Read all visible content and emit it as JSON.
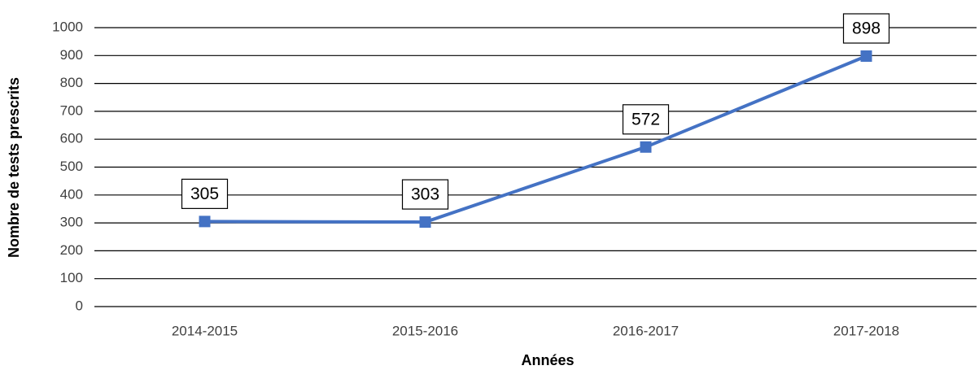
{
  "chart_data": {
    "type": "line",
    "x_label": "Années",
    "y_label": "Nombre de tests prescrits",
    "categories": [
      "2014-2015",
      "2015-2016",
      "2016-2017",
      "2017-2018"
    ],
    "series": [
      {
        "name": "Nombre de tests prescrits",
        "color": "#4472c4",
        "values": [
          305,
          303,
          572,
          898
        ]
      }
    ],
    "ylim": [
      0,
      1000
    ],
    "yticks": [
      0,
      100,
      200,
      300,
      400,
      500,
      600,
      700,
      800,
      900,
      1000
    ],
    "grid": true,
    "legend": false
  }
}
